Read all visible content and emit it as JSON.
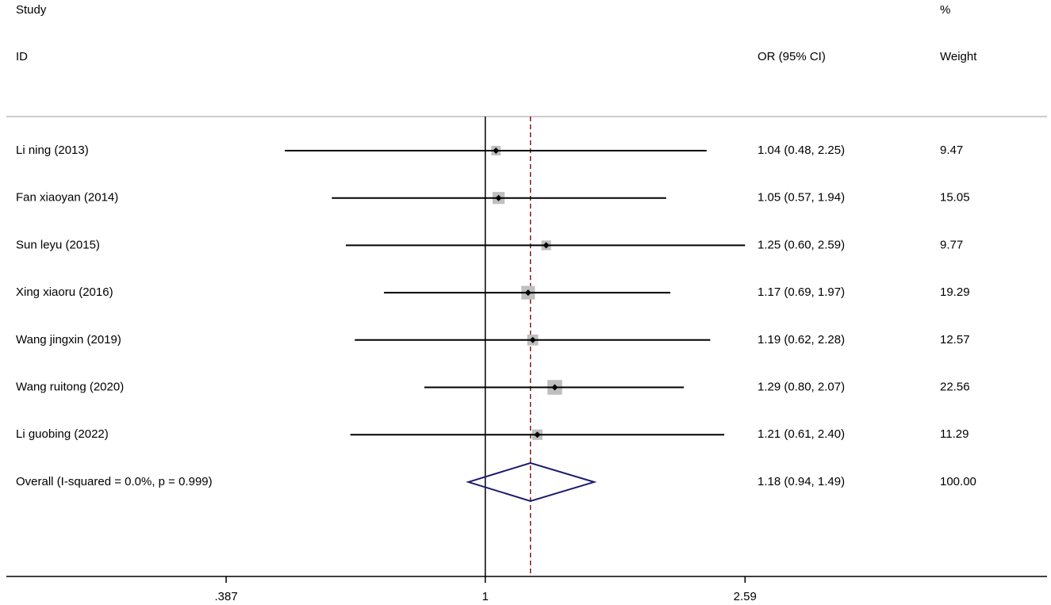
{
  "chart_data": {
    "type": "forest",
    "columns": [
      {
        "lines": [
          "Study",
          "ID"
        ]
      },
      {
        "lines": [
          "OR (95% CI)"
        ]
      },
      {
        "lines": [
          "%",
          "Weight"
        ]
      }
    ],
    "studies": [
      {
        "name": "Li ning (2013)",
        "or": 1.04,
        "lo": 0.48,
        "hi": 2.25,
        "ci_label": "1.04 (0.48, 2.25)",
        "weight": 9.47
      },
      {
        "name": "Fan xiaoyan (2014)",
        "or": 1.05,
        "lo": 0.57,
        "hi": 1.94,
        "ci_label": "1.05 (0.57, 1.94)",
        "weight": 15.05
      },
      {
        "name": "Sun leyu (2015)",
        "or": 1.25,
        "lo": 0.6,
        "hi": 2.59,
        "ci_label": "1.25 (0.60, 2.59)",
        "weight": 9.77
      },
      {
        "name": "Xing xiaoru (2016)",
        "or": 1.17,
        "lo": 0.69,
        "hi": 1.97,
        "ci_label": "1.17 (0.69, 1.97)",
        "weight": 19.29
      },
      {
        "name": "Wang jingxin (2019)",
        "or": 1.19,
        "lo": 0.62,
        "hi": 2.28,
        "ci_label": "1.19 (0.62, 2.28)",
        "weight": 12.57
      },
      {
        "name": "Wang ruitong (2020)",
        "or": 1.29,
        "lo": 0.8,
        "hi": 2.07,
        "ci_label": "1.29 (0.80, 2.07)",
        "weight": 22.56
      },
      {
        "name": "Li guobing (2022)",
        "or": 1.21,
        "lo": 0.61,
        "hi": 2.4,
        "ci_label": "1.21 (0.61, 2.40)",
        "weight": 11.29
      }
    ],
    "overall": {
      "name": "Overall  (I-squared = 0.0%, p = 0.999)",
      "or": 1.18,
      "lo": 0.94,
      "hi": 1.49,
      "ci_label": "1.18 (0.94, 1.49)",
      "weight": 100,
      "weight_label": "100.00"
    },
    "xlim": [
      0.173,
      7.83
    ],
    "xticks": [
      {
        "value": 0.387,
        "label": ".387"
      },
      1,
      2.59
    ],
    "log_scale": true,
    "null_value": 1,
    "ci_color": "#000000",
    "box_color": "#bfbfbf",
    "diamond_color": "#1a1a6e",
    "overall_line_color": "#8b1a1a"
  }
}
